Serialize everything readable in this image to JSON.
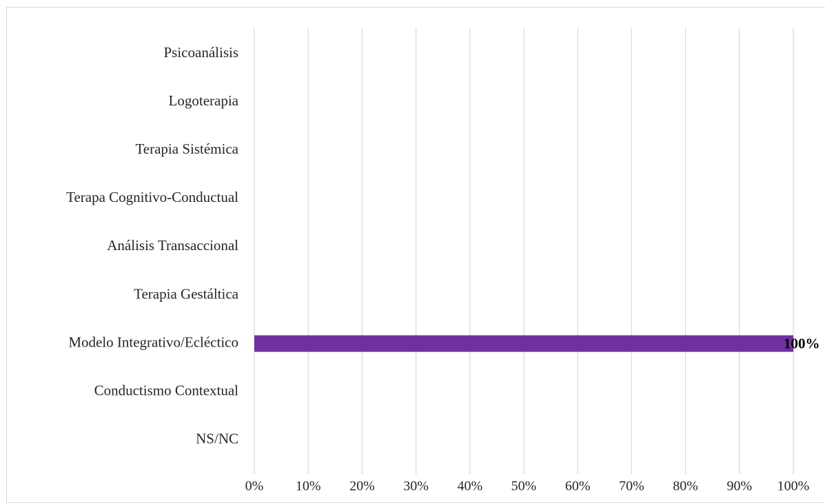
{
  "chart_data": {
    "type": "bar",
    "orientation": "horizontal",
    "title": "",
    "xlabel": "",
    "ylabel": "",
    "categories": [
      "Psicoanálisis",
      "Logoterapia",
      "Terapia Sistémica",
      "Terapa Cognitivo-Conductual",
      "Análisis Transaccional",
      "Terapia Gestáltica",
      "Modelo Integrativo/Ecléctico",
      "Conductismo Contextual",
      "NS/NC"
    ],
    "values": [
      0,
      0,
      0,
      0,
      0,
      0,
      100,
      0,
      0
    ],
    "data_labels": [
      "",
      "",
      "",
      "",
      "",
      "",
      "100%",
      "",
      ""
    ],
    "xlim": [
      0,
      100
    ],
    "x_ticks": [
      0,
      10,
      20,
      30,
      40,
      50,
      60,
      70,
      80,
      90,
      100
    ],
    "x_tick_labels": [
      "0%",
      "10%",
      "20%",
      "30%",
      "40%",
      "50%",
      "60%",
      "70%",
      "80%",
      "90%",
      "100%"
    ],
    "grid": "vertical",
    "legend": "none",
    "colors": {
      "bar": "#7030a0",
      "grid": "#d9d9d9",
      "text": "#262626",
      "border": "#d9d9d9"
    }
  }
}
